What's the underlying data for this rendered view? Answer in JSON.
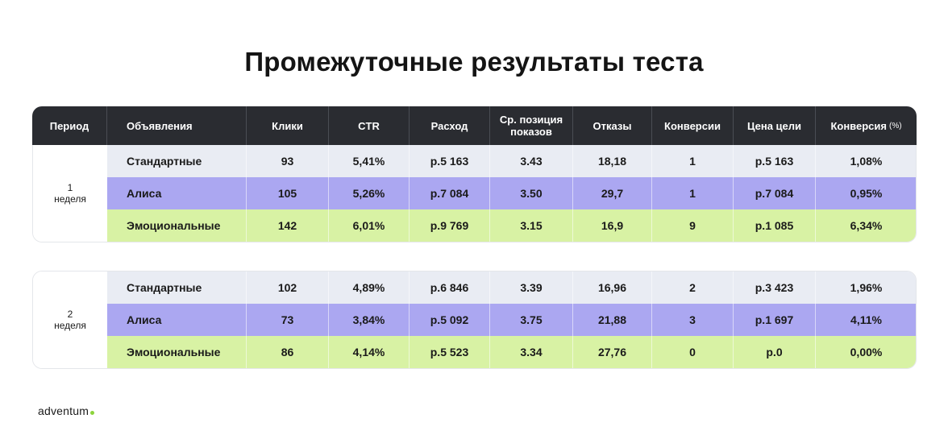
{
  "title": "Промежуточные результаты теста",
  "headers": {
    "period": "Период",
    "ads": "Объявления",
    "clicks": "Клики",
    "ctr": "CTR",
    "spend": "Расход",
    "avg_position_line1": "Ср. позиция",
    "avg_position_line2": "показов",
    "bounces": "Отказы",
    "conversions": "Конверсии",
    "goal_price": "Цена цели",
    "conversion_rate": "Конверсия",
    "conversion_rate_unit": "(%)"
  },
  "weeks": [
    {
      "number": "1",
      "label": "неделя",
      "rows": [
        {
          "ad": "Стандартные",
          "clicks": "93",
          "ctr": "5,41%",
          "spend": "р.5 163",
          "position": "3.43",
          "bounces": "18,18",
          "conversions": "1",
          "goal_price": "р.5 163",
          "conversion_rate": "1,08%"
        },
        {
          "ad": "Алиса",
          "clicks": "105",
          "ctr": "5,26%",
          "spend": "р.7 084",
          "position": "3.50",
          "bounces": "29,7",
          "conversions": "1",
          "goal_price": "р.7 084",
          "conversion_rate": "0,95%"
        },
        {
          "ad": "Эмоциональные",
          "clicks": "142",
          "ctr": "6,01%",
          "spend": "р.9 769",
          "position": "3.15",
          "bounces": "16,9",
          "conversions": "9",
          "goal_price": "р.1 085",
          "conversion_rate": "6,34%"
        }
      ]
    },
    {
      "number": "2",
      "label": "неделя",
      "rows": [
        {
          "ad": "Стандартные",
          "clicks": "102",
          "ctr": "4,89%",
          "spend": "р.6 846",
          "position": "3.39",
          "bounces": "16,96",
          "conversions": "2",
          "goal_price": "р.3 423",
          "conversion_rate": "1,96%"
        },
        {
          "ad": "Алиса",
          "clicks": "73",
          "ctr": "3,84%",
          "spend": "р.5 092",
          "position": "3.75",
          "bounces": "21,88",
          "conversions": "3",
          "goal_price": "р.1 697",
          "conversion_rate": "4,11%"
        },
        {
          "ad": "Эмоциональные",
          "clicks": "86",
          "ctr": "4,14%",
          "spend": "р.5 523",
          "position": "3.34",
          "bounces": "27,76",
          "conversions": "0",
          "goal_price": "р.0",
          "conversion_rate": "0,00%"
        }
      ]
    }
  ],
  "logo": {
    "text": "adventum",
    "dot_color": "#8cd43c"
  },
  "colors": {
    "header_bg": "#2a2c31",
    "standard_row": "#e9ecf3",
    "alisa_row": "#aba7f1",
    "emotional_row": "#d8f2a4"
  }
}
